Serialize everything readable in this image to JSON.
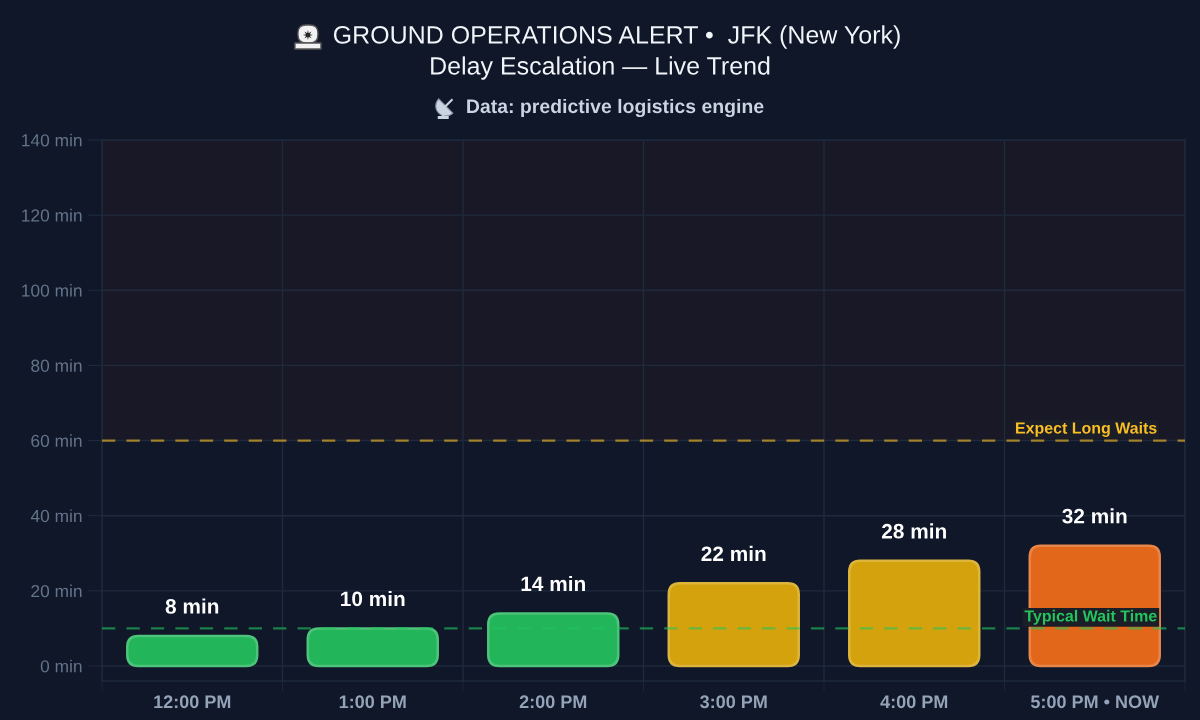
{
  "chart_data": {
    "type": "bar",
    "title": "GROUND OPERATIONS ALERT •  JFK (New York)\nDelay Escalation — Live Trend",
    "subtitle": "Data: predictive logistics engine",
    "categories": [
      "12:00 PM",
      "1:00 PM",
      "2:00 PM",
      "3:00 PM",
      "4:00 PM",
      "5:00 PM • NOW"
    ],
    "values": [
      8,
      10,
      14,
      22,
      28,
      32
    ],
    "colors": [
      "#22b55a",
      "#22b55a",
      "#22b55a",
      "#d4a20c",
      "#d4a20c",
      "#e2671a"
    ],
    "value_labels": [
      "8 min",
      "10 min",
      "14 min",
      "22 min",
      "28 min",
      "32 min"
    ],
    "ylim": [
      -4,
      140
    ],
    "yticks": [
      {
        "value": 0,
        "label": "0 min"
      },
      {
        "value": 20,
        "label": "20 min"
      },
      {
        "value": 40,
        "label": "40 min"
      },
      {
        "value": 60,
        "label": "60 min"
      },
      {
        "value": 80,
        "label": "80 min"
      },
      {
        "value": 100,
        "label": "100 min"
      },
      {
        "value": 120,
        "label": "120 min"
      },
      {
        "value": 140,
        "label": "140 min"
      }
    ],
    "grid": true,
    "ref_lines": [
      {
        "axis": "y",
        "value": 60,
        "label": "Expect Long Waits",
        "color": "#fbbf24",
        "line_style": "dashed"
      },
      {
        "axis": "y",
        "value": 10,
        "label": "Typical Wait Time",
        "color": "#22c55e",
        "line_style": "dashed"
      }
    ],
    "bands": [
      {
        "axis": "y",
        "from": 60,
        "to": 140,
        "color": "#181827"
      }
    ]
  }
}
